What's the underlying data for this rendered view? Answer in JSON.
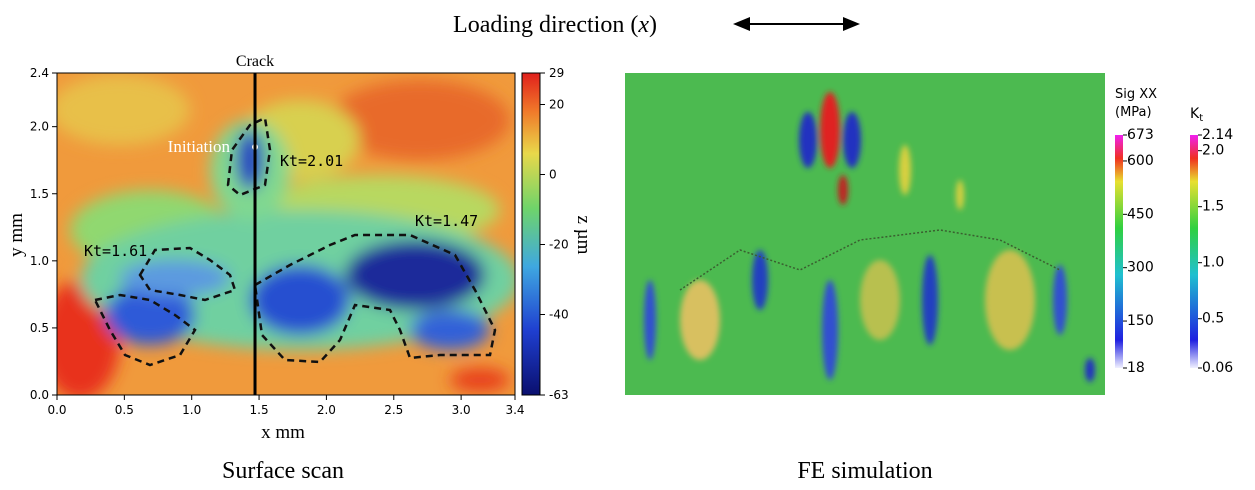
{
  "figure": {
    "title": {
      "text": "Loading direction (",
      "variable": "x",
      "close": ")"
    },
    "left": {
      "caption": "Surface scan",
      "xlabel": "x mm",
      "ylabel": "y mm",
      "xlim": [
        0,
        3.4
      ],
      "ylim": [
        0,
        2.4
      ],
      "xticks": [
        {
          "value": 0,
          "label": "0.0"
        },
        0.5,
        {
          "value": 1,
          "label": "1.0"
        },
        1.5,
        {
          "value": 2,
          "label": "2.0"
        },
        2.5,
        {
          "value": 3,
          "label": "3.0"
        },
        3.4
      ],
      "yticks": [
        {
          "value": 0,
          "label": "0.0"
        },
        0.5,
        {
          "value": 1,
          "label": "1.0"
        },
        1.5,
        {
          "value": 2,
          "label": "2.0"
        },
        2.4
      ],
      "crack_x": 1.47,
      "annotations": {
        "crack": "Crack",
        "initiation": "Initiation",
        "kt1": "Kt=2.01",
        "kt2": "Kt=1.61",
        "kt3": "Kt=1.47"
      },
      "colorbar": {
        "label": "z µm",
        "lim": [
          -63,
          29
        ],
        "ticks": [
          -63,
          -40,
          -20,
          0,
          20,
          29
        ]
      }
    },
    "right": {
      "caption": "FE simulation",
      "colorbar1": {
        "label1": "Sig XX",
        "label2": "(MPa)",
        "lim": [
          18,
          673
        ],
        "ticks": [
          18,
          150,
          300,
          450,
          600,
          673
        ]
      },
      "colorbar2": {
        "label": "K",
        "sub": "t",
        "lim": [
          0.06,
          2.14
        ],
        "ticks": [
          0.06,
          0.5,
          {
            "value": 1,
            "label": "1.0"
          },
          1.5,
          {
            "value": 2,
            "label": "2.0"
          },
          2.14
        ]
      }
    }
  }
}
